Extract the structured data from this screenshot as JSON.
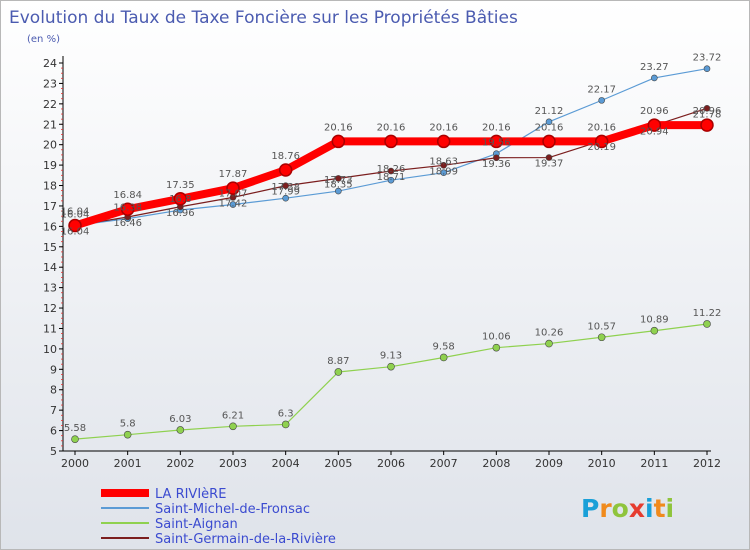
{
  "chart_data": {
    "type": "line",
    "title": "Evolution du Taux de Taxe Foncière sur les Propriétés Bâties",
    "subtitle": "(en %)",
    "categories": [
      "2000",
      "2001",
      "2002",
      "2003",
      "2004",
      "2005",
      "2006",
      "2007",
      "2008",
      "2009",
      "2010",
      "2011",
      "2012"
    ],
    "ylim": [
      5,
      24
    ],
    "yticks": [
      5,
      6,
      7,
      8,
      9,
      10,
      11,
      12,
      13,
      14,
      15,
      16,
      17,
      18,
      19,
      20,
      21,
      22,
      23,
      24
    ],
    "grid": false,
    "legend_position": "bottom-left",
    "series": [
      {
        "name": "LA RIVIèRE",
        "color": "#ff0000",
        "values": [
          16.04,
          16.84,
          17.35,
          17.87,
          18.76,
          20.16,
          20.16,
          20.16,
          20.16,
          20.16,
          20.16,
          20.96,
          20.96
        ],
        "labels": [
          "16.04",
          "16.84",
          "17.35",
          "17.87",
          "18.76",
          "20.16",
          "20.16",
          "20.16",
          "20.16",
          "20.16",
          "20.16",
          "20.96",
          "20.96"
        ]
      },
      {
        "name": "Saint-Michel-de-Fronsac",
        "color": "#5b9bd5",
        "values": [
          16.04,
          16.38,
          16.8,
          17.07,
          17.38,
          17.73,
          18.26,
          18.63,
          19.56,
          21.12,
          22.17,
          23.27,
          23.72
        ],
        "labels": [
          "16.04",
          "16.38",
          "16.8",
          "17.07",
          "17.38",
          "17.73",
          "18.26",
          "18.63",
          "19.56",
          "21.12",
          "22.17",
          "23.27",
          "23.72"
        ]
      },
      {
        "name": "Saint-Aignan",
        "color": "#8fd14f",
        "values": [
          5.58,
          5.8,
          6.03,
          6.21,
          6.3,
          8.87,
          9.13,
          9.58,
          10.06,
          10.26,
          10.57,
          10.89,
          11.22
        ],
        "labels": [
          "5.58",
          "5.8",
          "6.03",
          "6.21",
          "6.3",
          "8.87",
          "9.13",
          "9.58",
          "10.06",
          "10.26",
          "10.57",
          "10.89",
          "11.22"
        ]
      },
      {
        "name": "Saint-Germain-de-la-Rivière",
        "color": "#7b1e1e",
        "values": [
          16.04,
          16.46,
          16.96,
          17.42,
          17.99,
          18.35,
          18.71,
          18.99,
          19.36,
          19.37,
          20.19,
          20.94,
          21.78
        ],
        "labels": [
          "16.04",
          "16.46",
          "16.96",
          "17.42",
          "17.99",
          "18.35",
          "18.71",
          "18.99",
          "19.36",
          "19.37",
          "20.19",
          "20.94",
          "21.78"
        ]
      }
    ]
  },
  "logo": {
    "text": "Proxiti"
  }
}
